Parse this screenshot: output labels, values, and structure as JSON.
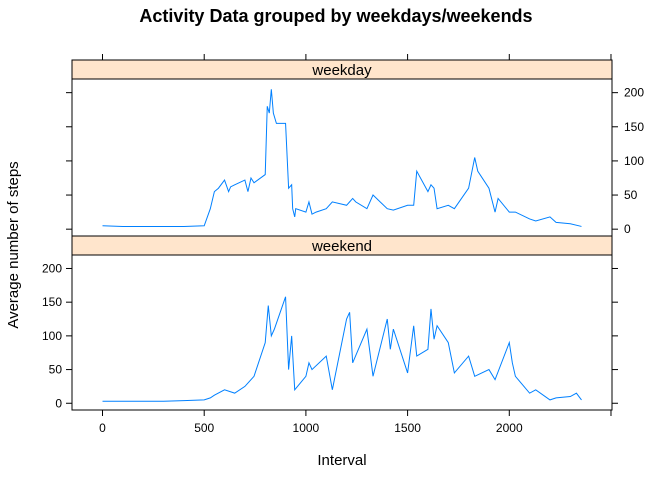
{
  "chart_data": {
    "type": "line",
    "title": "Activity Data grouped by weekdays/weekends",
    "xlabel": "Interval",
    "ylabel": "Average number of steps",
    "xlim": [
      -150,
      2505
    ],
    "ylim": [
      -10,
      220
    ],
    "x_ticks": [
      0,
      500,
      1000,
      1500,
      2000
    ],
    "y_ticks": [
      0,
      50,
      100,
      150,
      200
    ],
    "line_color": "#0080ff",
    "strip_color": "#ffe5cc",
    "panels": [
      {
        "name": "weekday",
        "series": {
          "x": [
            0,
            100,
            200,
            300,
            400,
            500,
            530,
            550,
            570,
            600,
            620,
            630,
            650,
            700,
            715,
            730,
            745,
            800,
            810,
            820,
            830,
            840,
            850,
            855,
            900,
            915,
            930,
            935,
            945,
            950,
            1000,
            1015,
            1030,
            1050,
            1100,
            1130,
            1200,
            1215,
            1230,
            1245,
            1300,
            1330,
            1400,
            1430,
            1500,
            1530,
            1545,
            1600,
            1615,
            1630,
            1645,
            1700,
            1730,
            1800,
            1830,
            1845,
            1900,
            1930,
            1945,
            2000,
            2030,
            2100,
            2130,
            2200,
            2230,
            2300,
            2355
          ],
          "y": [
            5,
            4,
            4,
            4,
            4,
            5,
            30,
            55,
            60,
            72,
            55,
            62,
            65,
            72,
            55,
            75,
            68,
            80,
            180,
            170,
            205,
            170,
            160,
            155,
            155,
            60,
            65,
            30,
            18,
            30,
            25,
            40,
            22,
            25,
            30,
            40,
            35,
            40,
            45,
            40,
            30,
            50,
            30,
            28,
            35,
            35,
            85,
            55,
            65,
            60,
            30,
            35,
            30,
            60,
            105,
            85,
            60,
            25,
            45,
            25,
            25,
            15,
            12,
            18,
            10,
            8,
            4
          ]
        }
      },
      {
        "name": "weekend",
        "series": {
          "x": [
            0,
            100,
            200,
            300,
            400,
            500,
            530,
            550,
            600,
            650,
            700,
            745,
            800,
            815,
            830,
            845,
            900,
            915,
            930,
            945,
            1000,
            1015,
            1030,
            1100,
            1130,
            1200,
            1215,
            1230,
            1300,
            1330,
            1400,
            1415,
            1430,
            1500,
            1530,
            1545,
            1600,
            1615,
            1630,
            1645,
            1700,
            1730,
            1800,
            1830,
            1900,
            1930,
            2000,
            2015,
            2030,
            2100,
            2130,
            2200,
            2230,
            2300,
            2330,
            2355
          ],
          "y": [
            3,
            3,
            3,
            3,
            4,
            5,
            8,
            12,
            20,
            15,
            25,
            40,
            90,
            145,
            100,
            110,
            158,
            50,
            100,
            20,
            40,
            60,
            50,
            70,
            20,
            125,
            135,
            60,
            110,
            40,
            125,
            80,
            110,
            45,
            115,
            70,
            80,
            140,
            95,
            115,
            90,
            45,
            70,
            40,
            50,
            35,
            90,
            60,
            40,
            15,
            20,
            5,
            8,
            10,
            15,
            5
          ]
        }
      }
    ]
  }
}
